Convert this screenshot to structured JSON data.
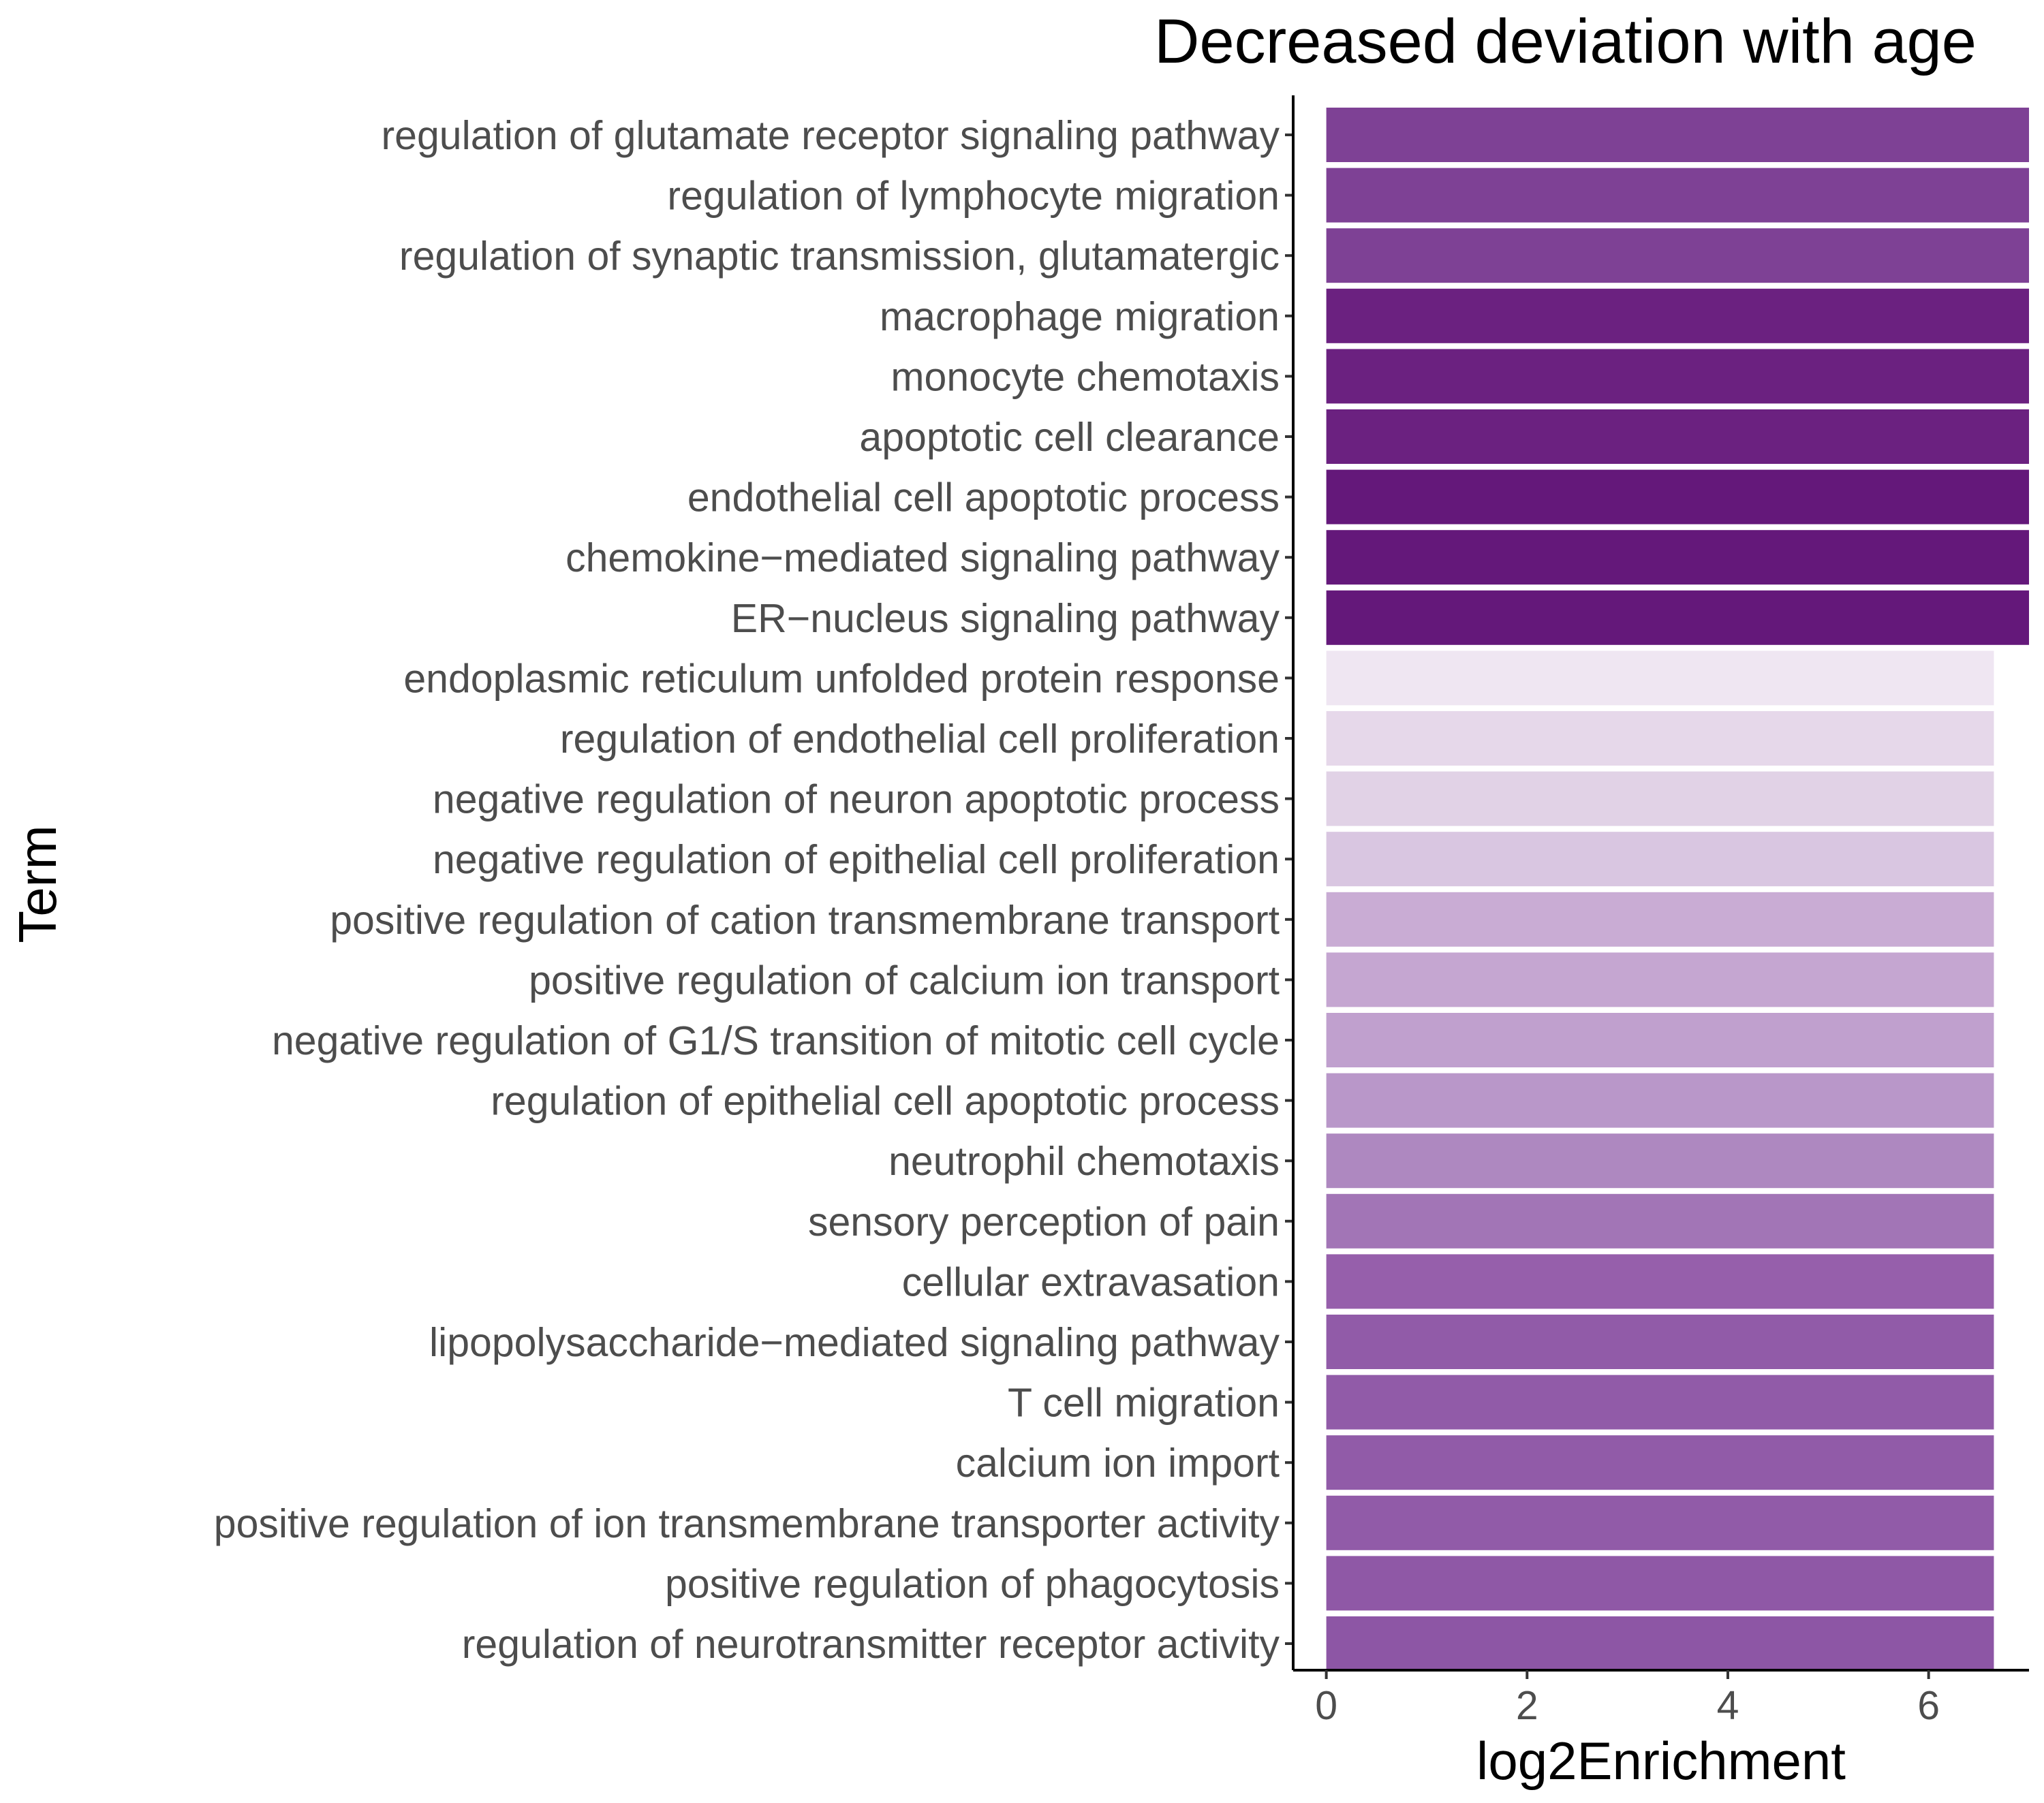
{
  "chart_data": {
    "type": "bar",
    "orientation": "horizontal",
    "title": "Decreased deviation with age",
    "xlabel": "log2Enrichment",
    "ylabel": "Term",
    "xlim": [
      -0.33,
      7.0
    ],
    "xticks": [
      "0",
      "2",
      "4",
      "6"
    ],
    "grid": false,
    "legend": "none",
    "categories": [
      "regulation of glutamate receptor signaling pathway",
      "regulation of lymphocyte migration",
      "regulation of synaptic transmission, glutamatergic",
      "macrophage migration",
      "monocyte chemotaxis",
      "apoptotic cell clearance",
      "endothelial cell apoptotic process",
      "chemokine−mediated signaling pathway",
      "ER−nucleus signaling pathway",
      "endoplasmic reticulum unfolded protein response",
      "regulation of endothelial cell proliferation",
      "negative regulation of neuron apoptotic process",
      "negative regulation of epithelial cell proliferation",
      "positive regulation of cation transmembrane transport",
      "positive regulation of calcium ion transport",
      "negative regulation of G1/S transition of mitotic cell cycle",
      "regulation of epithelial cell apoptotic process",
      "neutrophil chemotaxis",
      "sensory perception of pain",
      "cellular extravasation",
      "lipopolysaccharide−mediated signaling pathway",
      "T cell migration",
      "calcium ion import",
      "positive regulation of ion transmembrane transporter activity",
      "positive regulation of phagocytosis",
      "regulation of neurotransmitter receptor activity"
    ],
    "values": [
      7.0,
      7.0,
      7.0,
      7.0,
      7.0,
      7.0,
      7.0,
      7.0,
      7.0,
      6.65,
      6.65,
      6.65,
      6.65,
      6.65,
      6.65,
      6.65,
      6.65,
      6.65,
      6.65,
      6.65,
      6.65,
      6.65,
      6.65,
      6.65,
      6.65,
      6.65
    ],
    "bar_colors": [
      "#7e4195",
      "#7e4195",
      "#7e4195",
      "#6b2180",
      "#6b2180",
      "#6b2180",
      "#64187a",
      "#64187a",
      "#64187a",
      "#efe6f2",
      "#e6d8ea",
      "#e1d2e6",
      "#d9c6e1",
      "#c9acd4",
      "#c5a6d1",
      "#c0a0ce",
      "#b997c9",
      "#ae88c0",
      "#a275b6",
      "#965fab",
      "#915ba8",
      "#915ba8",
      "#915ba8",
      "#915ba8",
      "#8f58a6",
      "#8d56a5"
    ]
  }
}
